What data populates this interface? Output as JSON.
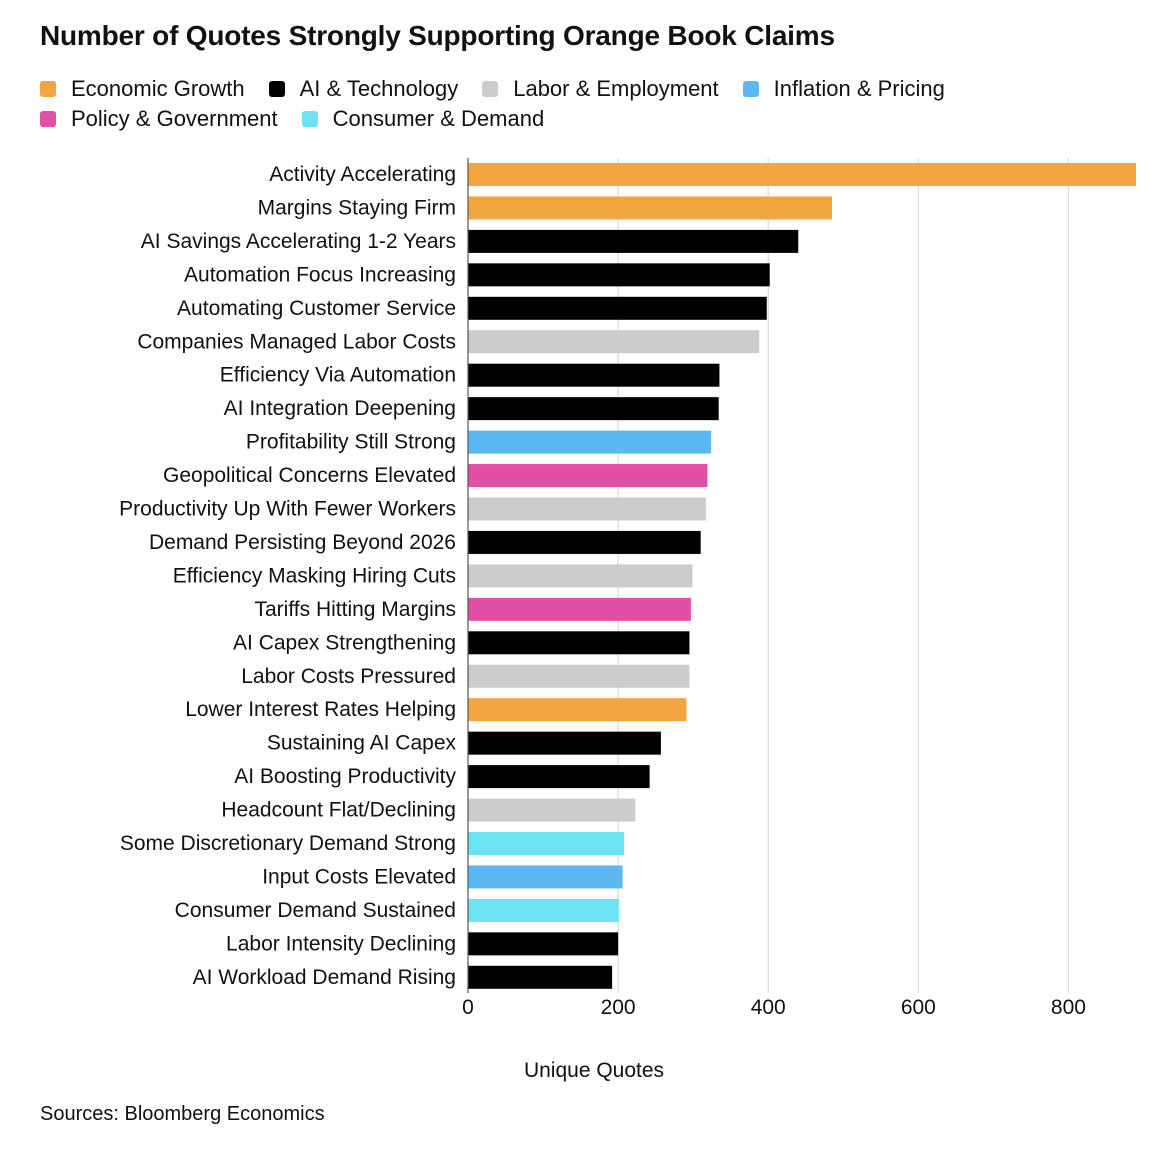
{
  "chart_data": {
    "type": "bar",
    "orientation": "horizontal",
    "title": "Number of Quotes Strongly Supporting Orange Book Claims",
    "xlabel": "Unique Quotes",
    "ylabel": "",
    "xlim": [
      0,
      890
    ],
    "xticks": [
      0,
      200,
      400,
      600,
      800
    ],
    "grid": "vertical",
    "legend": "top",
    "legend_entries": [
      {
        "name": "Economic Growth",
        "color": "#F2A541"
      },
      {
        "name": "AI & Technology",
        "color": "#000000"
      },
      {
        "name": "Labor & Employment",
        "color": "#CCCCCC"
      },
      {
        "name": "Inflation & Pricing",
        "color": "#5CB8F2"
      },
      {
        "name": "Policy & Government",
        "color": "#E34FA6"
      },
      {
        "name": "Consumer & Demand",
        "color": "#6BE3F2"
      }
    ],
    "categories": [
      "Activity Accelerating",
      "Margins Staying Firm",
      "AI Savings Accelerating 1-2 Years",
      "Automation Focus Increasing",
      "Automating Customer Service",
      "Companies Managed Labor Costs",
      "Efficiency Via Automation",
      "AI Integration Deepening",
      "Profitability Still Strong",
      "Geopolitical Concerns Elevated",
      "Productivity Up With Fewer Workers",
      "Demand Persisting Beyond 2026",
      "Efficiency Masking Hiring Cuts",
      "Tariffs Hitting Margins",
      "AI Capex Strengthening",
      "Labor Costs Pressured",
      "Lower Interest Rates Helping",
      "Sustaining AI Capex",
      "AI Boosting Productivity",
      "Headcount Flat/Declining",
      "Some Discretionary Demand Strong",
      "Input Costs Elevated",
      "Consumer Demand Sustained",
      "Labor Intensity Declining",
      "AI Workload Demand Rising"
    ],
    "values": [
      890,
      485,
      440,
      402,
      398,
      388,
      335,
      334,
      324,
      319,
      317,
      310,
      299,
      297,
      295,
      295,
      291,
      257,
      242,
      223,
      208,
      206,
      201,
      200,
      192
    ],
    "groups": [
      "Economic Growth",
      "Economic Growth",
      "AI & Technology",
      "AI & Technology",
      "AI & Technology",
      "Labor & Employment",
      "AI & Technology",
      "AI & Technology",
      "Inflation & Pricing",
      "Policy & Government",
      "Labor & Employment",
      "AI & Technology",
      "Labor & Employment",
      "Policy & Government",
      "AI & Technology",
      "Labor & Employment",
      "Economic Growth",
      "AI & Technology",
      "AI & Technology",
      "Labor & Employment",
      "Consumer & Demand",
      "Inflation & Pricing",
      "Consumer & Demand",
      "AI & Technology",
      "AI & Technology"
    ]
  },
  "footer": {
    "source": "Sources: Bloomberg Economics"
  }
}
